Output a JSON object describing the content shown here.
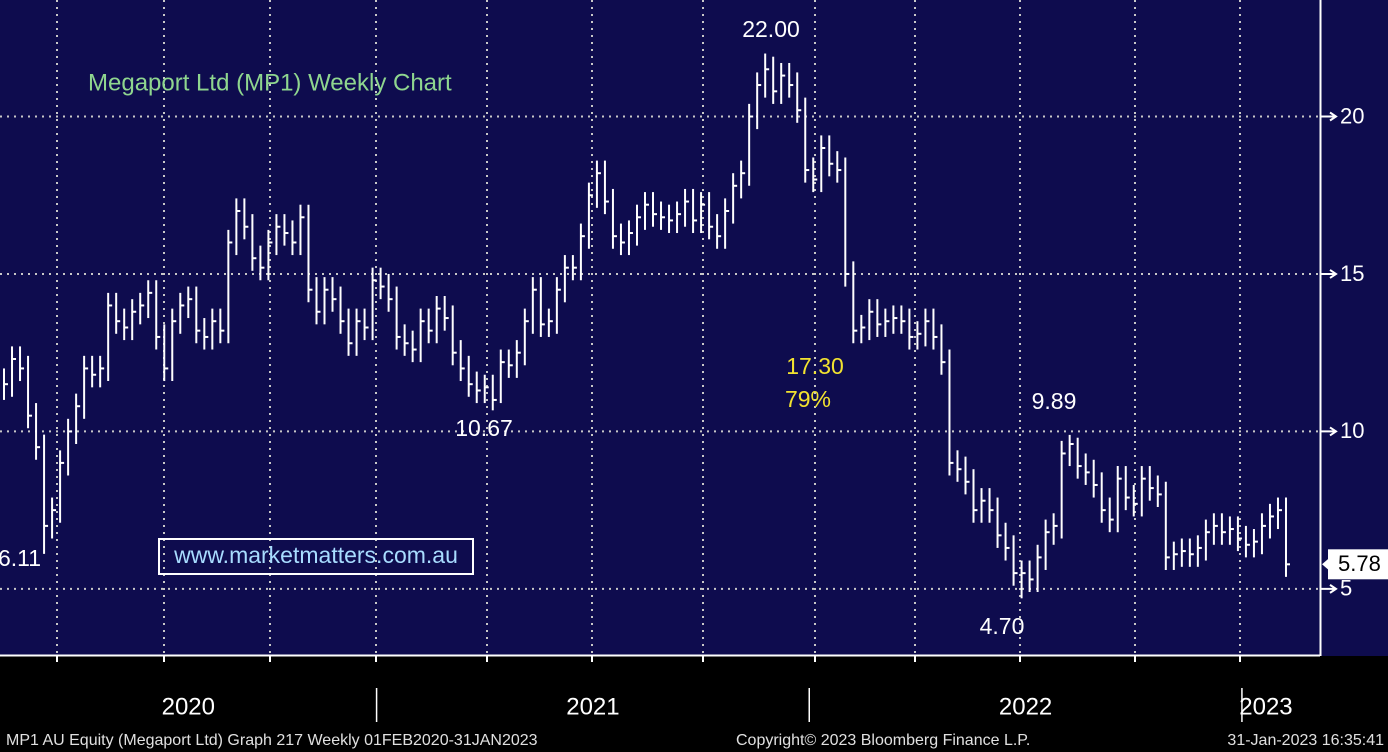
{
  "chart_data": {
    "type": "hlc",
    "title": "Megaport Ltd (MP1) Weekly Chart",
    "color": "#ffffff",
    "categories": [
      null,
      null,
      null,
      null,
      null,
      null,
      null,
      null,
      null,
      null,
      null,
      null,
      null,
      null,
      null,
      null,
      null,
      null,
      null,
      null,
      null,
      null,
      null,
      null,
      null,
      null,
      null,
      null,
      null,
      null,
      null,
      null,
      null,
      null,
      null,
      null,
      null,
      null,
      null,
      null,
      null,
      null,
      null,
      null,
      null,
      null,
      null,
      null,
      null,
      null,
      null,
      null,
      null,
      null,
      null,
      null,
      null,
      null,
      null,
      null,
      null,
      null,
      null,
      null,
      null,
      null,
      null,
      null,
      null,
      null,
      null,
      null,
      null,
      null,
      null,
      null,
      null,
      null,
      null,
      null,
      null,
      null,
      null,
      null,
      null,
      null,
      null,
      null,
      null,
      null,
      null,
      null,
      null,
      null,
      null,
      null,
      null,
      null,
      null,
      null,
      null,
      null,
      null,
      null,
      null,
      null,
      null,
      null,
      null,
      null,
      null,
      null,
      null,
      null,
      null,
      null,
      null,
      null,
      null,
      null,
      null,
      null,
      null,
      null,
      null,
      null,
      null,
      null,
      null,
      null,
      null,
      null,
      null,
      null,
      null,
      null,
      null,
      null,
      null,
      null,
      null,
      null,
      null,
      null,
      null,
      null,
      null,
      null,
      null,
      null,
      null,
      null,
      null,
      null,
      null,
      null,
      null,
      null,
      null,
      null,
      null
    ],
    "high": [
      12.0,
      12.7,
      12.7,
      12.4,
      10.9,
      9.9,
      7.9,
      9.4,
      10.4,
      11.2,
      12.4,
      12.4,
      12.4,
      14.4,
      14.4,
      13.9,
      14.2,
      14.4,
      14.8,
      14.8,
      13.4,
      13.9,
      14.4,
      14.6,
      14.6,
      13.6,
      13.9,
      13.9,
      16.4,
      17.4,
      17.4,
      16.9,
      15.9,
      16.4,
      16.9,
      16.9,
      16.7,
      17.2,
      17.2,
      14.9,
      14.9,
      14.9,
      14.6,
      13.9,
      13.9,
      13.9,
      15.2,
      15.2,
      15.0,
      14.6,
      13.4,
      13.2,
      13.9,
      13.9,
      14.3,
      14.3,
      14.0,
      12.9,
      12.4,
      11.9,
      11.8,
      11.8,
      12.6,
      12.6,
      12.9,
      13.9,
      14.9,
      14.9,
      13.9,
      14.9,
      15.6,
      15.6,
      16.6,
      17.9,
      18.6,
      18.6,
      17.7,
      16.6,
      16.7,
      17.2,
      17.6,
      17.6,
      17.3,
      17.2,
      17.3,
      17.7,
      17.7,
      17.6,
      17.6,
      16.9,
      17.4,
      18.2,
      18.6,
      20.4,
      21.4,
      22.0,
      21.9,
      21.7,
      21.7,
      21.4,
      20.6,
      18.7,
      19.4,
      19.4,
      18.9,
      18.7,
      15.4,
      13.7,
      14.2,
      14.2,
      13.9,
      14.0,
      14.0,
      13.9,
      13.5,
      13.9,
      13.9,
      13.4,
      12.6,
      9.4,
      9.2,
      8.8,
      8.2,
      8.2,
      7.9,
      7.1,
      6.7,
      5.9,
      5.9,
      6.4,
      7.2,
      7.4,
      9.7,
      9.89,
      9.8,
      9.3,
      9.1,
      8.7,
      7.9,
      8.9,
      8.9,
      8.3,
      8.9,
      8.9,
      8.6,
      8.4,
      6.5,
      6.6,
      6.6,
      6.7,
      7.2,
      7.4,
      7.4,
      7.3,
      7.3,
      7.0,
      6.9,
      7.4,
      7.7,
      7.9,
      7.9
    ],
    "low": [
      11.0,
      11.1,
      11.6,
      10.1,
      9.1,
      6.11,
      6.6,
      7.1,
      8.6,
      9.6,
      10.4,
      11.4,
      11.4,
      11.6,
      13.1,
      12.9,
      12.9,
      13.4,
      13.6,
      12.6,
      11.6,
      11.6,
      13.1,
      13.6,
      12.8,
      12.6,
      12.6,
      12.8,
      12.8,
      15.6,
      16.1,
      15.1,
      14.8,
      14.8,
      15.6,
      15.9,
      15.6,
      15.6,
      14.1,
      13.4,
      13.4,
      13.8,
      13.1,
      12.4,
      12.4,
      12.9,
      12.9,
      14.2,
      13.8,
      12.6,
      12.4,
      12.2,
      12.2,
      12.8,
      12.8,
      13.2,
      12.1,
      11.6,
      11.1,
      10.9,
      10.9,
      10.67,
      10.9,
      11.7,
      11.7,
      12.1,
      13.1,
      13.0,
      13.0,
      13.1,
      14.1,
      14.8,
      14.8,
      15.8,
      17.1,
      16.9,
      15.8,
      15.6,
      15.6,
      15.9,
      16.4,
      16.5,
      16.4,
      16.3,
      16.3,
      16.5,
      16.3,
      16.3,
      16.1,
      15.8,
      15.8,
      16.6,
      17.4,
      17.8,
      19.6,
      20.6,
      20.4,
      20.4,
      20.6,
      19.8,
      17.9,
      17.6,
      17.6,
      18.1,
      17.9,
      14.6,
      12.8,
      12.8,
      12.9,
      13.0,
      13.0,
      13.1,
      13.1,
      12.6,
      12.6,
      12.7,
      12.6,
      11.8,
      8.6,
      8.4,
      8.0,
      7.1,
      7.1,
      7.1,
      6.3,
      5.9,
      5.1,
      4.7,
      4.9,
      4.9,
      5.6,
      6.4,
      6.6,
      8.9,
      8.5,
      8.3,
      7.9,
      7.1,
      6.8,
      6.8,
      7.5,
      7.3,
      7.3,
      7.8,
      7.6,
      5.6,
      5.6,
      5.7,
      5.7,
      5.7,
      5.9,
      6.4,
      6.4,
      6.4,
      6.2,
      6.0,
      6.0,
      6.1,
      6.6,
      6.9,
      5.38
    ],
    "close": [
      11.5,
      12.3,
      12.0,
      10.5,
      9.5,
      7.0,
      7.5,
      9.0,
      10.0,
      10.8,
      12.0,
      11.8,
      12.0,
      14.0,
      13.5,
      13.3,
      13.8,
      14.0,
      14.4,
      13.0,
      12.0,
      13.5,
      14.0,
      14.2,
      13.2,
      13.0,
      13.5,
      13.2,
      16.0,
      17.0,
      16.5,
      15.5,
      15.2,
      16.0,
      16.5,
      16.3,
      16.0,
      16.8,
      14.5,
      13.8,
      14.5,
      14.2,
      13.5,
      12.8,
      13.5,
      13.3,
      14.8,
      14.6,
      14.2,
      13.0,
      12.8,
      12.6,
      13.5,
      13.2,
      13.9,
      13.6,
      12.5,
      12.0,
      11.5,
      11.3,
      11.4,
      11.0,
      12.2,
      12.1,
      12.5,
      13.5,
      14.5,
      13.4,
      13.5,
      14.5,
      15.2,
      15.2,
      16.2,
      17.5,
      18.2,
      17.3,
      16.2,
      16.0,
      16.3,
      16.8,
      17.2,
      16.9,
      16.8,
      16.7,
      16.9,
      17.3,
      16.7,
      17.2,
      16.5,
      16.2,
      17.0,
      17.8,
      18.2,
      20.0,
      21.0,
      21.5,
      20.8,
      21.3,
      21.0,
      20.2,
      18.3,
      18.0,
      19.0,
      18.5,
      18.3,
      15.0,
      13.2,
      13.3,
      13.8,
      13.4,
      13.5,
      13.6,
      13.5,
      13.0,
      13.1,
      13.5,
      13.0,
      12.2,
      9.0,
      8.8,
      8.4,
      7.5,
      7.8,
      7.5,
      6.7,
      6.3,
      5.5,
      5.5,
      5.3,
      6.0,
      6.8,
      7.0,
      9.3,
      9.6,
      8.9,
      8.7,
      8.3,
      7.5,
      7.2,
      8.5,
      7.9,
      7.7,
      8.5,
      8.2,
      8.0,
      6.0,
      6.1,
      6.2,
      6.1,
      6.3,
      6.8,
      7.0,
      6.8,
      6.9,
      6.6,
      6.4,
      6.5,
      7.0,
      7.3,
      7.5,
      5.78
    ],
    "last_price": 5.78,
    "ylim": [
      2.9,
      23.7
    ],
    "yticks": [
      5,
      10,
      15,
      20
    ],
    "grid": true,
    "x_groups": [
      {
        "label": "2020",
        "start": 0
      },
      {
        "label": "2021",
        "start": 47
      },
      {
        "label": "2022",
        "start": 101
      },
      {
        "label": "2023",
        "start": 155
      }
    ],
    "annotations": [
      "22.00",
      "10.67",
      "17.30",
      "79%",
      "9.89",
      "4.70",
      "6.11",
      "www.marketmatters.com.au"
    ],
    "footer": [
      "MP1 AU Equity (Megaport Ltd) Graph 217  Weekly 01FEB2020-31JAN2023",
      "Copyright© 2023 Bloomberg Finance L.P.",
      "31-Jan-2023 16:35:41"
    ]
  }
}
